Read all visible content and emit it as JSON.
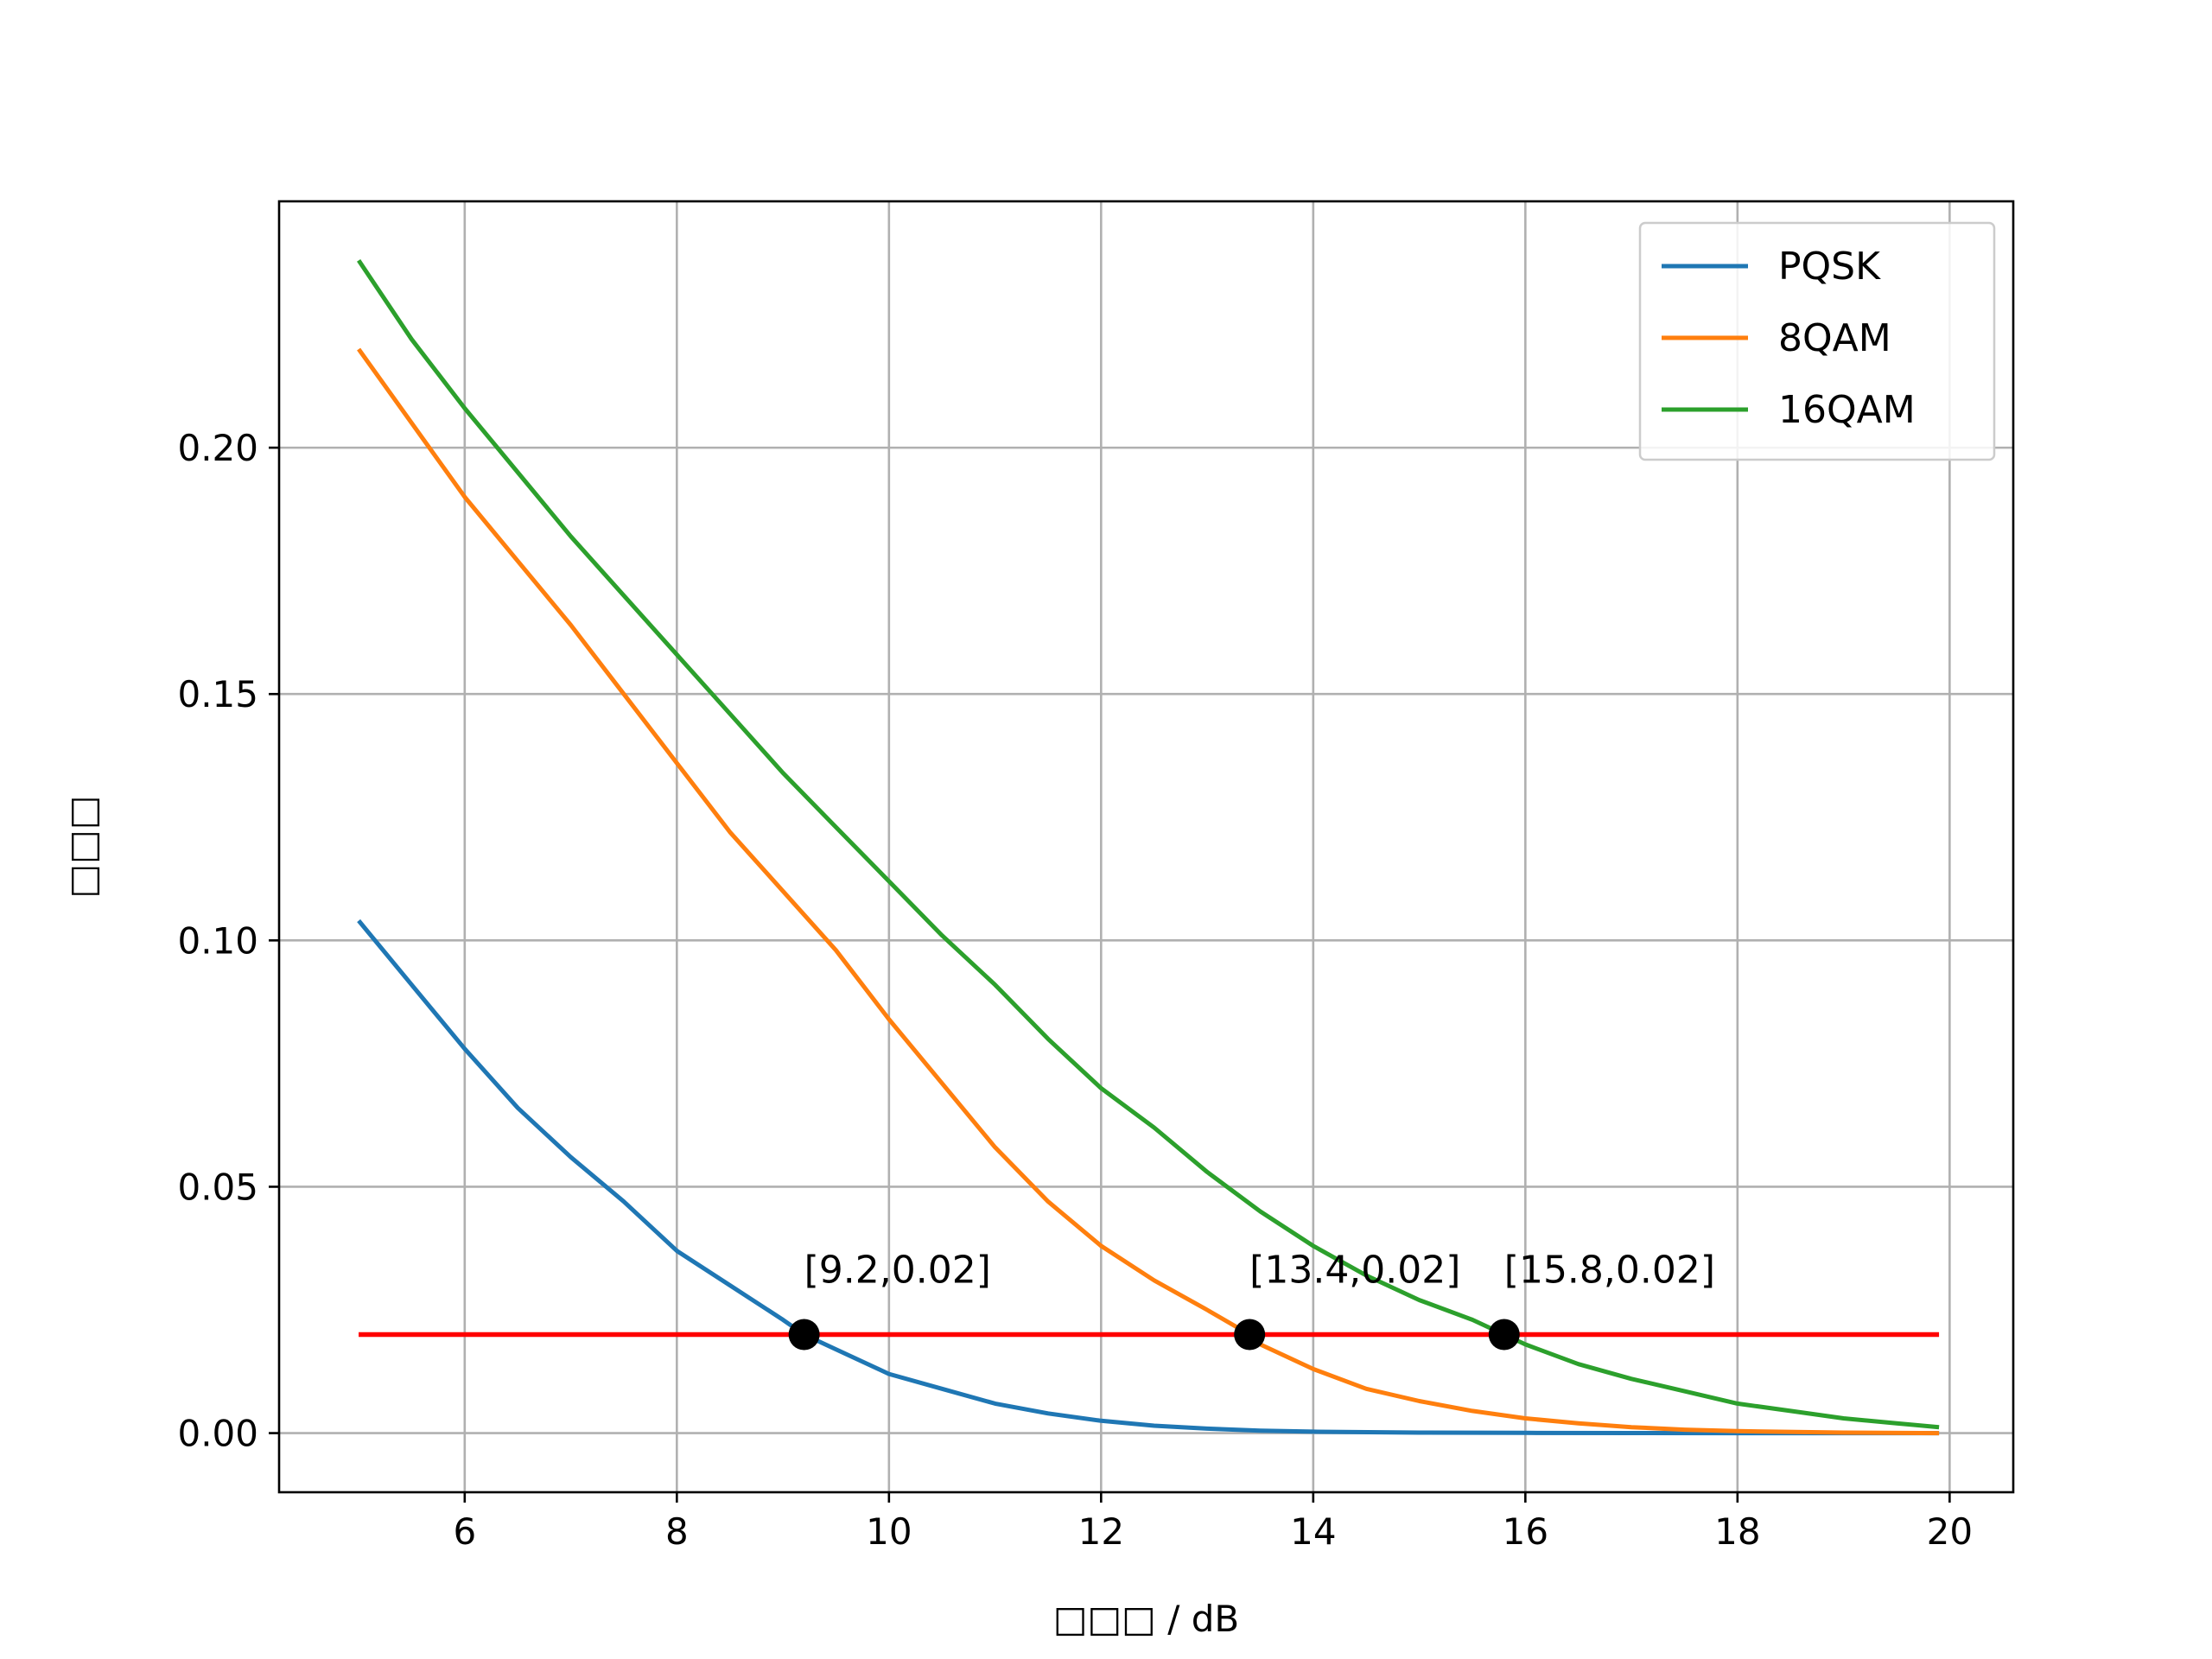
{
  "chart_data": {
    "type": "line",
    "xlabel": "□□□ / dB",
    "ylabel": "□□□",
    "xlim": [
      4.25,
      20.6
    ],
    "ylim": [
      -0.012,
      0.25
    ],
    "xticks": [
      6,
      8,
      10,
      12,
      14,
      16,
      18,
      20
    ],
    "xtick_labels": [
      "6",
      "8",
      "10",
      "12",
      "14",
      "16",
      "18",
      "20"
    ],
    "yticks": [
      0.0,
      0.05,
      0.1,
      0.15,
      0.2
    ],
    "ytick_labels": [
      "0.00",
      "0.05",
      "0.10",
      "0.15",
      "0.20"
    ],
    "grid": true,
    "legend_position": "top-right",
    "series": [
      {
        "name": "PQSK",
        "color": "#1f77b4",
        "x": [
          5.0,
          5.5,
          6.0,
          6.5,
          7.0,
          7.5,
          8.0,
          8.5,
          9.0,
          9.2,
          9.5,
          10.0,
          10.5,
          11.0,
          11.5,
          12.0,
          12.5,
          13.0,
          13.5,
          14.0,
          15.0,
          16.0,
          17.0,
          18.0,
          19.0,
          19.9
        ],
        "values": [
          0.104,
          0.091,
          0.078,
          0.066,
          0.056,
          0.047,
          0.037,
          0.03,
          0.023,
          0.02,
          0.017,
          0.012,
          0.009,
          0.006,
          0.004,
          0.0025,
          0.0015,
          0.0009,
          0.0005,
          0.0003,
          0.0001,
          5e-05,
          2e-05,
          0.0,
          0.0,
          0.0
        ]
      },
      {
        "name": "8QAM",
        "color": "#ff7f0e",
        "x": [
          5.0,
          5.5,
          6.0,
          6.5,
          7.0,
          7.5,
          8.0,
          8.5,
          9.0,
          9.5,
          10.0,
          10.5,
          11.0,
          11.5,
          12.0,
          12.5,
          13.0,
          13.4,
          13.5,
          14.0,
          14.5,
          15.0,
          15.5,
          16.0,
          16.5,
          17.0,
          17.5,
          18.0,
          19.0,
          19.9
        ],
        "values": [
          0.22,
          0.205,
          0.19,
          0.177,
          0.164,
          0.15,
          0.136,
          0.122,
          0.11,
          0.098,
          0.084,
          0.071,
          0.058,
          0.047,
          0.038,
          0.031,
          0.025,
          0.02,
          0.018,
          0.013,
          0.009,
          0.0065,
          0.0045,
          0.003,
          0.002,
          0.0012,
          0.0007,
          0.0004,
          0.0001,
          0.0
        ]
      },
      {
        "name": "16QAM",
        "color": "#2ca02c",
        "x": [
          5.0,
          5.5,
          6.0,
          6.5,
          7.0,
          7.5,
          8.0,
          8.5,
          9.0,
          9.5,
          10.0,
          10.5,
          11.0,
          11.5,
          12.0,
          12.5,
          13.0,
          13.5,
          14.0,
          14.5,
          15.0,
          15.5,
          15.8,
          16.0,
          16.5,
          17.0,
          17.5,
          18.0,
          18.5,
          19.0,
          19.5,
          19.9
        ],
        "values": [
          0.238,
          0.222,
          0.208,
          0.195,
          0.182,
          0.17,
          0.158,
          0.146,
          0.134,
          0.123,
          0.112,
          0.101,
          0.091,
          0.08,
          0.07,
          0.062,
          0.053,
          0.045,
          0.038,
          0.032,
          0.027,
          0.023,
          0.02,
          0.018,
          0.014,
          0.011,
          0.0085,
          0.006,
          0.0045,
          0.003,
          0.002,
          0.0012
        ]
      }
    ],
    "threshold": {
      "value": 0.02,
      "x_start": 5.0,
      "x_end": 19.9,
      "color": "#ff0000"
    },
    "annotations": [
      {
        "x": 9.2,
        "y": 0.02,
        "label": "[9.2,0.02]"
      },
      {
        "x": 13.4,
        "y": 0.02,
        "label": "[13.4,0.02]"
      },
      {
        "x": 15.8,
        "y": 0.02,
        "label": "[15.8,0.02]"
      }
    ]
  }
}
